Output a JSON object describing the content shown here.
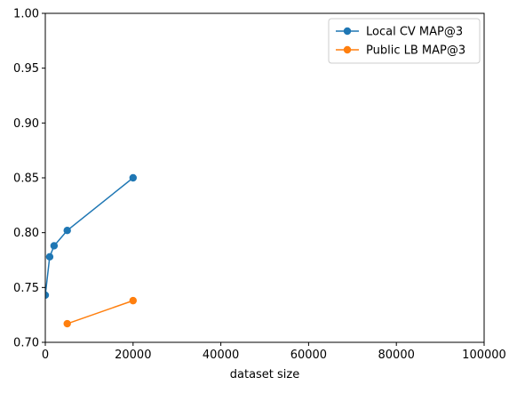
{
  "chart_data": {
    "type": "line",
    "title": "",
    "xlabel": "dataset size",
    "ylabel": "",
    "xlim": [
      0,
      100000
    ],
    "ylim": [
      0.7,
      1.0
    ],
    "grid": false,
    "legend_position": "top-right",
    "xticks": [
      {
        "value": 0,
        "label": "0"
      },
      {
        "value": 20000,
        "label": "20000"
      },
      {
        "value": 40000,
        "label": "40000"
      },
      {
        "value": 60000,
        "label": "60000"
      },
      {
        "value": 80000,
        "label": "80000"
      },
      {
        "value": 100000,
        "label": "100000"
      }
    ],
    "yticks": [
      {
        "value": 0.7,
        "label": "0.70"
      },
      {
        "value": 0.75,
        "label": "0.75"
      },
      {
        "value": 0.8,
        "label": "0.80"
      },
      {
        "value": 0.85,
        "label": "0.85"
      },
      {
        "value": 0.9,
        "label": "0.90"
      },
      {
        "value": 0.95,
        "label": "0.95"
      },
      {
        "value": 1.0,
        "label": "1.00"
      }
    ],
    "series": [
      {
        "name": "Local CV MAP@3",
        "color": "#1f77b4",
        "marker": "circle",
        "x": [
          0,
          1000,
          2000,
          5000,
          20000
        ],
        "y": [
          0.743,
          0.778,
          0.788,
          0.802,
          0.85
        ]
      },
      {
        "name": "Public LB MAP@3",
        "color": "#ff7f0e",
        "marker": "circle",
        "x": [
          5000,
          20000
        ],
        "y": [
          0.717,
          0.738
        ]
      }
    ]
  }
}
